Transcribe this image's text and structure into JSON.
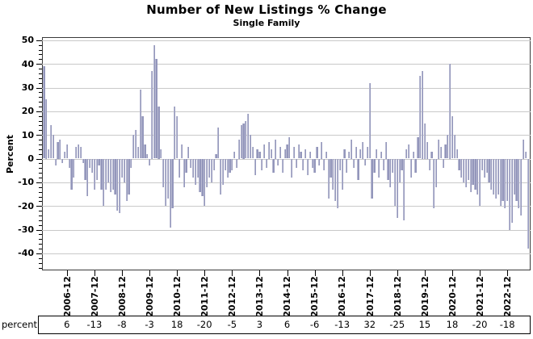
{
  "chart_data": {
    "type": "bar",
    "title": "Number of New Listings % Change",
    "subtitle": "Single Family",
    "ylabel": "Percent",
    "xlabel": "",
    "grid": true,
    "legend": "none",
    "ylim": [
      -40,
      50
    ],
    "ytick_step": 10,
    "yminor_step": 2,
    "yticks": [
      50,
      40,
      30,
      20,
      10,
      0,
      -10,
      -20,
      -30,
      -40
    ],
    "bar_color": "#9396bb",
    "gridline_color": "#c9c9c9",
    "frame_color": "#3a3a3a",
    "start_month": "2006-02",
    "end_month": "2023-09",
    "monthly_values": [
      39,
      25,
      4,
      14,
      10,
      -3,
      7,
      8,
      -2,
      3,
      6,
      -4,
      -13,
      -8,
      5,
      6,
      5,
      -2,
      -9,
      -16,
      -4,
      -6,
      -13,
      -9,
      -3,
      -13,
      -20,
      -13,
      -10,
      -14,
      -13,
      -15,
      -22,
      -23,
      -8,
      -10,
      -18,
      -15,
      -4,
      10,
      12,
      5,
      29,
      18,
      6,
      2,
      -3,
      37,
      48,
      42,
      22,
      4,
      -12,
      -20,
      -17,
      -29,
      -21,
      22,
      18,
      -8,
      6,
      -12,
      -6,
      5,
      -4,
      -8,
      -11,
      -8,
      -14,
      -16,
      -20,
      -12,
      -8,
      -10,
      -5,
      2,
      13,
      -15,
      -11,
      -5,
      -8,
      -6,
      -5,
      3,
      -4,
      8,
      14,
      15,
      16,
      19,
      10,
      5,
      -7,
      4,
      3,
      -5,
      6,
      -4,
      7,
      4,
      -6,
      8,
      -3,
      5,
      -6,
      4,
      6,
      9,
      -8,
      5,
      -4,
      6,
      3,
      -5,
      4,
      -7,
      3,
      -4,
      -6,
      5,
      -3,
      7,
      -5,
      3,
      -17,
      -8,
      -13,
      -18,
      -21,
      -5,
      -13,
      4,
      -6,
      3,
      8,
      -4,
      5,
      -9,
      4,
      7,
      -3,
      5,
      32,
      -17,
      -6,
      4,
      -8,
      3,
      -5,
      7,
      -9,
      -12,
      -6,
      -20,
      -25,
      -10,
      -5,
      -26,
      4,
      6,
      -8,
      3,
      -6,
      9,
      35,
      37,
      15,
      7,
      -5,
      3,
      -21,
      -12,
      8,
      5,
      -4,
      6,
      10,
      40,
      18,
      10,
      4,
      -5,
      -8,
      -10,
      -12,
      -9,
      -14,
      -11,
      -13,
      -15,
      -20,
      -5,
      -8,
      -6,
      -10,
      -13,
      -15,
      -17,
      -15,
      -20,
      -18,
      -21,
      -18,
      -30,
      -27,
      -15,
      -18,
      -21,
      -24,
      8,
      3,
      -38
    ],
    "xtick_labels": [
      "2006-12",
      "2007-12",
      "2008-12",
      "2009-12",
      "2010-12",
      "2011-12",
      "2012-12",
      "2013-12",
      "2014-12",
      "2015-12",
      "2016-12",
      "2017-12",
      "2018-12",
      "2019-12",
      "2020-12",
      "2021-12",
      "2022-12"
    ],
    "december_table": {
      "label": "percent",
      "values": [
        6,
        -13,
        -8,
        -3,
        18,
        -20,
        -5,
        3,
        6,
        -6,
        -13,
        32,
        -25,
        15,
        18,
        -20,
        -18
      ]
    }
  }
}
